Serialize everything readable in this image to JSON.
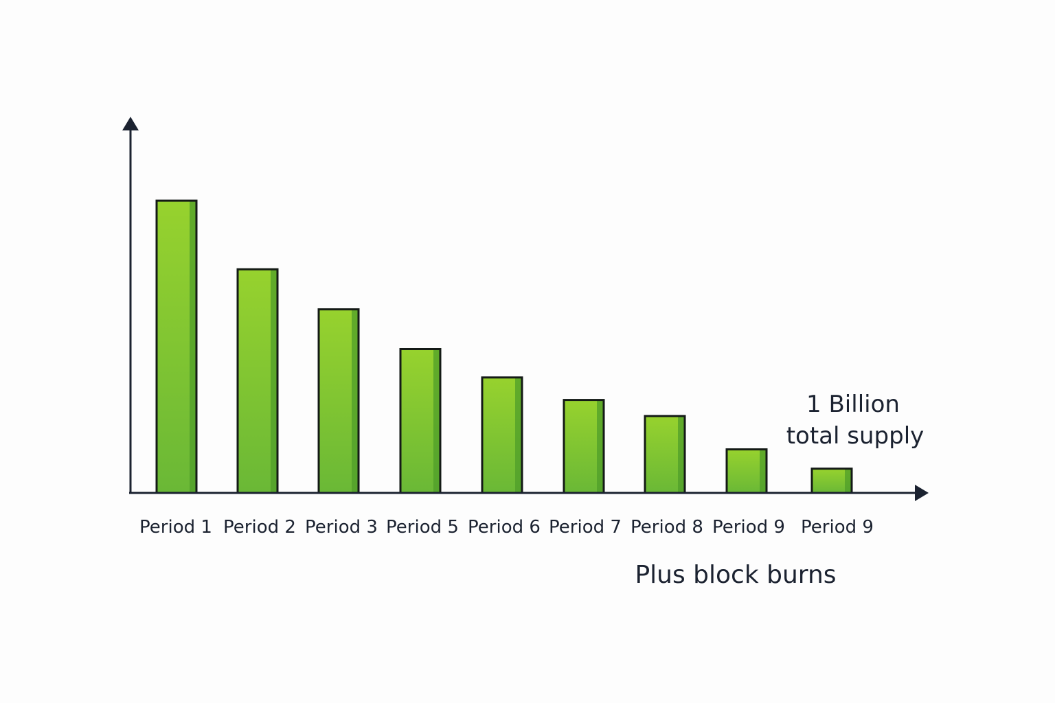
{
  "chart_data": {
    "type": "bar",
    "title": "",
    "xlabel": "",
    "ylabel": "",
    "categories": [
      "Period 1",
      "Period 2",
      "Period 3",
      "Period 5",
      "Period 6",
      "Period 7",
      "Period 8",
      "Period 9",
      "Period 9"
    ],
    "values": [
      100,
      76.5,
      62.8,
      49.2,
      39.5,
      31.8,
      26.3,
      14.9,
      8.3
    ],
    "ylim": [
      0,
      124
    ],
    "grid": false,
    "legend": "none",
    "annotations": {
      "supply_line1": "1 Billion",
      "supply_line2": "total supply",
      "footnote": "Plus block burns"
    },
    "colors": {
      "bar_top": "#97d22e",
      "bar_bottom": "#6ab836",
      "bar_shade": "#4f9e2a",
      "bar_outline": "#141a16",
      "axis": "#1b2230",
      "text": "#1b2230"
    }
  }
}
